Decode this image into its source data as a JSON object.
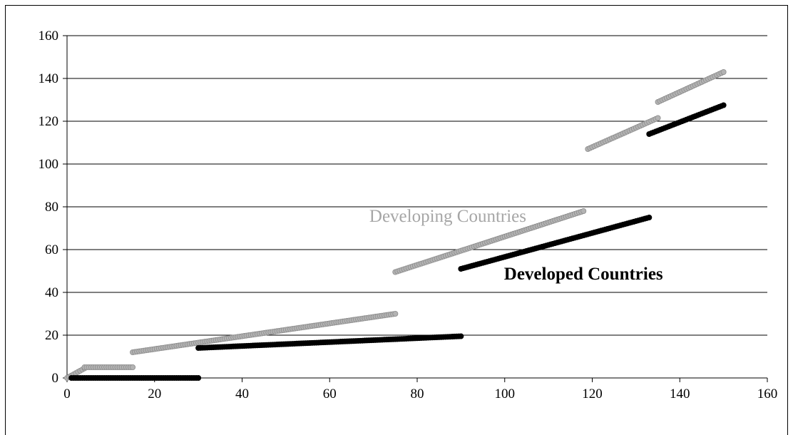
{
  "chart_data": {
    "type": "scatter",
    "title": "",
    "xlabel": "",
    "ylabel": "",
    "xlim": [
      0,
      160
    ],
    "ylim": [
      0,
      160
    ],
    "x_ticks": [
      "0",
      "20",
      "40",
      "60",
      "80",
      "100",
      "120",
      "140",
      "160"
    ],
    "y_ticks": [
      "0",
      "20",
      "40",
      "60",
      "80",
      "100",
      "120",
      "140",
      "160"
    ],
    "grid": "horizontal",
    "legend": "none",
    "annotations": [
      {
        "text": "Developing Countries",
        "x": 87,
        "y": 73,
        "color": "#a6a6a6",
        "bold": false
      },
      {
        "text": "Developed Countries",
        "x": 118,
        "y": 46,
        "color": "#000000",
        "bold": true
      }
    ],
    "series": [
      {
        "color": "#b3b3b3",
        "edge": "#8c8c8c",
        "segments": [
          {
            "x_start": 0,
            "x_end": 4,
            "y_start": 0,
            "y_end": 4.5
          },
          {
            "x_start": 4,
            "x_end": 15,
            "y_start": 5,
            "y_end": 5
          },
          {
            "x_start": 15,
            "x_end": 75,
            "y_start": 12,
            "y_end": 30
          },
          {
            "x_start": 75,
            "x_end": 118,
            "y_start": 49.5,
            "y_end": 78
          },
          {
            "x_start": 119,
            "x_end": 135,
            "y_start": 107,
            "y_end": 121.5
          },
          {
            "x_start": 135,
            "x_end": 150,
            "y_start": 129,
            "y_end": 143
          }
        ]
      },
      {
        "color": "#000000",
        "edge": "#000000",
        "segments": [
          {
            "x_start": 1,
            "x_end": 30,
            "y_start": 0,
            "y_end": 0
          },
          {
            "x_start": 30,
            "x_end": 90,
            "y_start": 14,
            "y_end": 19.5
          },
          {
            "x_start": 90,
            "x_end": 133,
            "y_start": 51,
            "y_end": 75
          },
          {
            "x_start": 133,
            "x_end": 150,
            "y_start": 114,
            "y_end": 127.5
          }
        ]
      }
    ]
  }
}
